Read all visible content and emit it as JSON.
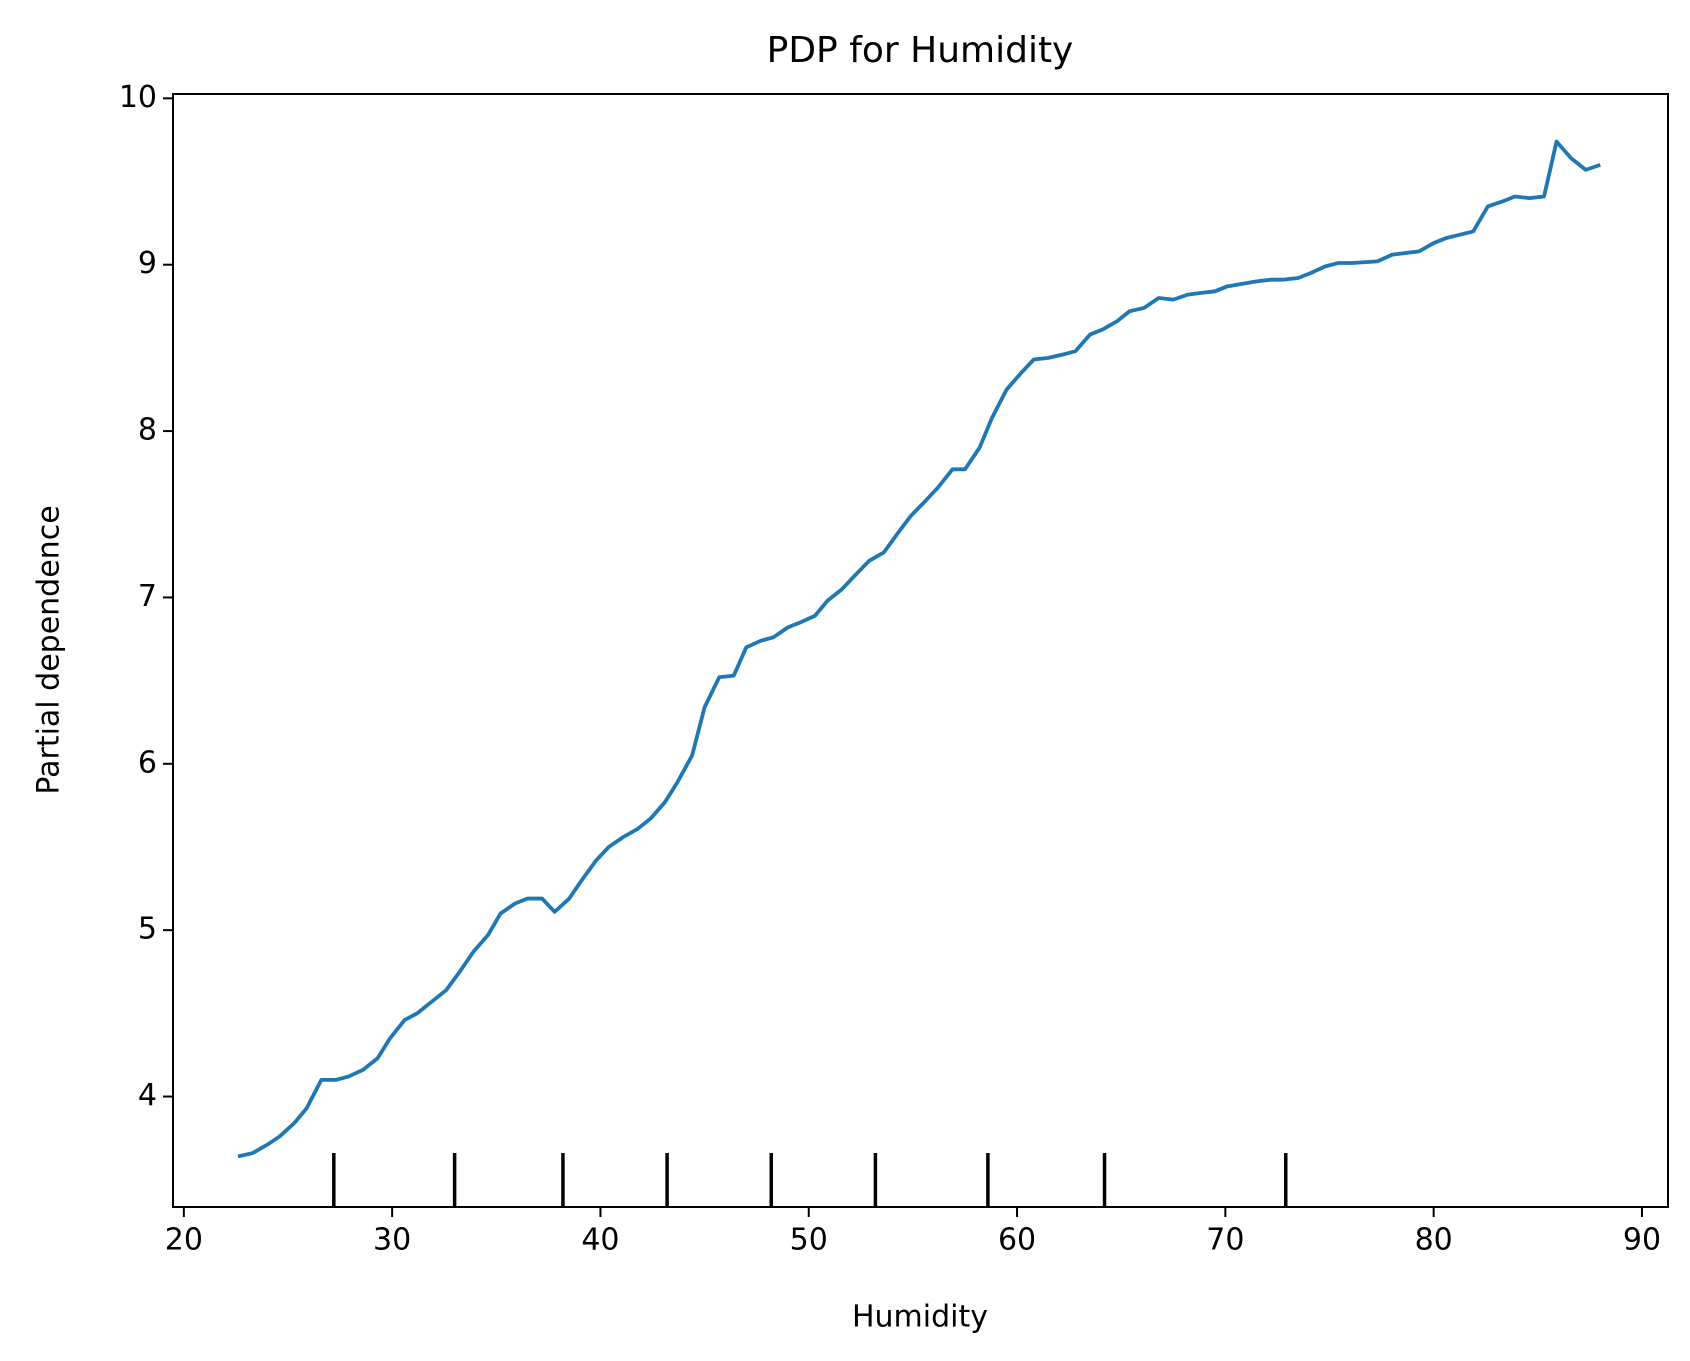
{
  "chart_data": {
    "type": "line",
    "title": "PDP for Humidity",
    "x_label": "Humidity",
    "y_label": "Partial dependence",
    "xlim": [
      19.48,
      91.25
    ],
    "ylim": [
      3.336,
      10.026
    ],
    "xticks": [
      20,
      30,
      40,
      50,
      60,
      70,
      80,
      90
    ],
    "yticks": [
      4,
      5,
      6,
      7,
      8,
      9,
      10
    ],
    "deciles": [
      27.2,
      33.0,
      38.2,
      43.2,
      48.2,
      53.2,
      58.6,
      64.2,
      72.9
    ],
    "series": [
      {
        "color": "#1f77b4",
        "x": [
          22.6,
          23.3,
          24.0,
          24.6,
          25.3,
          25.9,
          26.6,
          27.3,
          27.9,
          28.6,
          29.3,
          29.9,
          30.6,
          31.2,
          31.9,
          32.6,
          33.3,
          33.9,
          34.6,
          35.2,
          35.9,
          36.5,
          37.2,
          37.8,
          38.5,
          39.1,
          39.8,
          40.4,
          41.1,
          41.8,
          42.4,
          43.1,
          43.7,
          44.4,
          45.0,
          45.7,
          46.4,
          47.0,
          47.7,
          48.3,
          49.0,
          49.6,
          50.3,
          50.9,
          51.6,
          52.2,
          52.9,
          53.6,
          54.3,
          54.9,
          55.6,
          56.2,
          56.9,
          57.5,
          58.2,
          58.8,
          59.5,
          60.2,
          60.8,
          61.5,
          62.2,
          62.8,
          63.5,
          64.1,
          64.8,
          65.4,
          66.1,
          66.8,
          67.5,
          68.2,
          68.8,
          69.5,
          70.1,
          71.5,
          72.2,
          72.8,
          73.5,
          74.1,
          74.8,
          75.4,
          76.1,
          77.3,
          78.0,
          79.3,
          80.0,
          80.6,
          81.9,
          82.6,
          83.3,
          83.9,
          84.6,
          85.3,
          85.9,
          86.6,
          87.3,
          88.0
        ],
        "values": [
          3.64,
          3.66,
          3.71,
          3.76,
          3.84,
          3.93,
          4.1,
          4.1,
          4.12,
          4.16,
          4.23,
          4.35,
          4.46,
          4.5,
          4.57,
          4.64,
          4.76,
          4.87,
          4.97,
          5.1,
          5.16,
          5.19,
          5.19,
          5.11,
          5.19,
          5.3,
          5.42,
          5.5,
          5.56,
          5.61,
          5.67,
          5.77,
          5.89,
          6.05,
          6.34,
          6.52,
          6.53,
          6.7,
          6.74,
          6.76,
          6.82,
          6.85,
          6.89,
          6.98,
          7.05,
          7.13,
          7.22,
          7.27,
          7.39,
          7.49,
          7.58,
          7.66,
          7.77,
          7.77,
          7.9,
          8.08,
          8.25,
          8.35,
          8.43,
          8.44,
          8.46,
          8.48,
          8.58,
          8.61,
          8.66,
          8.72,
          8.74,
          8.8,
          8.79,
          8.82,
          8.83,
          8.84,
          8.87,
          8.9,
          8.91,
          8.91,
          8.92,
          8.95,
          8.99,
          9.01,
          9.01,
          9.02,
          9.06,
          9.08,
          9.13,
          9.16,
          9.2,
          9.35,
          9.38,
          9.41,
          9.4,
          9.41,
          9.74,
          9.64,
          9.57,
          9.6
        ]
      }
    ]
  }
}
